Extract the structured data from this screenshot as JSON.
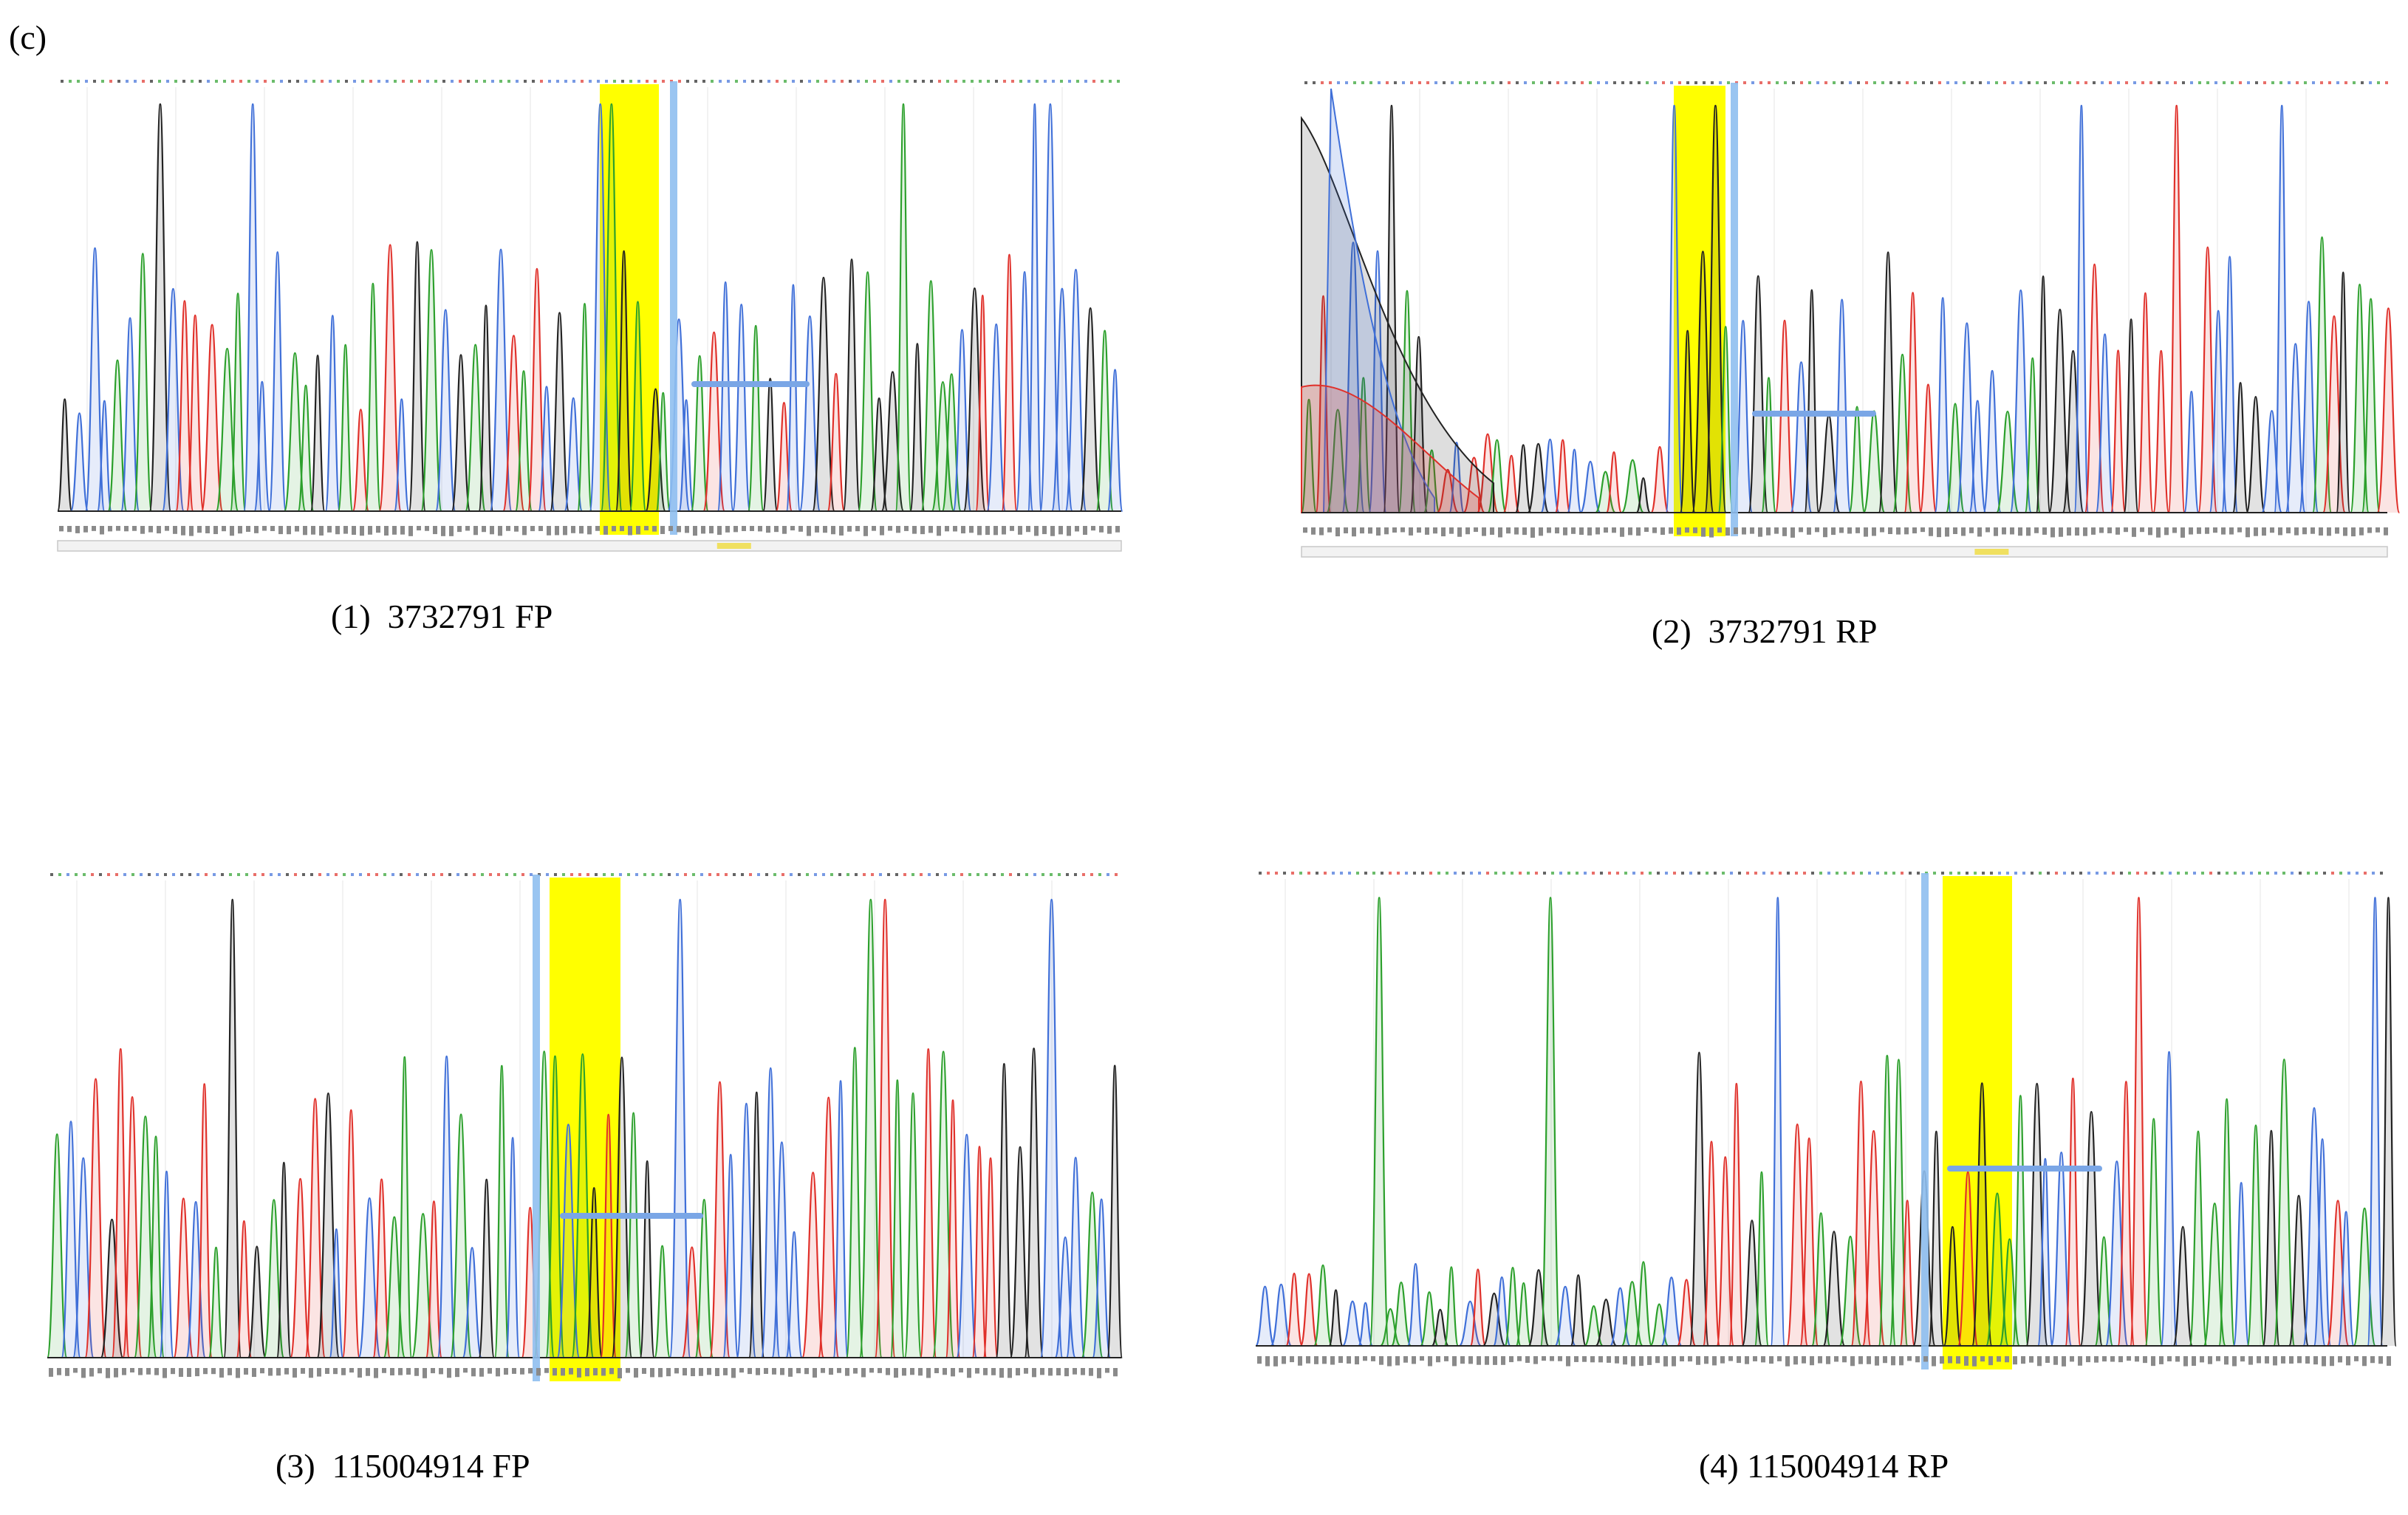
{
  "panel_label": "(c)",
  "colors": {
    "A": "#2ca02c",
    "C": "#3f6fd8",
    "G": "#222222",
    "T": "#e0302a",
    "highlight": "#ffff00",
    "cursor": "#8fbff0",
    "arrow": "#7aa6e6"
  },
  "panels": [
    {
      "caption": "(1)  3732791 FP"
    },
    {
      "caption": "(2)  3732791 RP"
    },
    {
      "caption": "(3)  115004914 FP"
    },
    {
      "caption": "(4) 115004914 RP"
    }
  ]
}
